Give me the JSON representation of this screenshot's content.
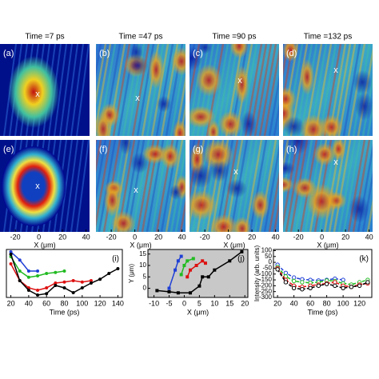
{
  "heatmaps": {
    "titles": [
      "Time =7 ps",
      "Time =47 ps",
      "Time =90 ps",
      "Time =132 ps"
    ],
    "panels": [
      {
        "label": "(a)",
        "marker": "x"
      },
      {
        "label": "(b)",
        "marker": "x"
      },
      {
        "label": "(c)",
        "marker": "x"
      },
      {
        "label": "(d)",
        "marker": "x"
      },
      {
        "label": "(e)",
        "marker": "x"
      },
      {
        "label": "(f)",
        "marker": "x"
      },
      {
        "label": "(g)",
        "marker": "x"
      },
      {
        "label": "(h)",
        "marker": "x"
      }
    ],
    "xlim": [
      -33,
      43
    ],
    "xticks": [
      -20,
      0,
      20,
      40
    ],
    "x_label": "X (μm)"
  },
  "chart_data": [
    {
      "type": "line",
      "panel_label": "(i)",
      "x_label": "Time (ps)",
      "xlim": [
        15,
        145
      ],
      "xticks": [
        20,
        40,
        60,
        80,
        100,
        120,
        140
      ],
      "ylim": [
        0,
        1
      ],
      "marker": "circle",
      "line_style": "solid",
      "background": "#ffffff",
      "series": [
        {
          "color": "#1f3fd6",
          "x": [
            20,
            30,
            40,
            50
          ],
          "values": [
            0.95,
            0.78,
            0.55,
            0.55
          ]
        },
        {
          "color": "#22bb22",
          "x": [
            20,
            30,
            40,
            50,
            60,
            70,
            80
          ],
          "values": [
            0.85,
            0.55,
            0.42,
            0.45,
            0.5,
            0.52,
            0.55
          ]
        },
        {
          "color": "#dd1111",
          "x": [
            20,
            30,
            40,
            50,
            60,
            70,
            80,
            90,
            100,
            110
          ],
          "values": [
            0.7,
            0.35,
            0.2,
            0.15,
            0.2,
            0.3,
            0.32,
            0.35,
            0.32,
            0.35
          ]
        },
        {
          "color": "#000000",
          "x": [
            20,
            30,
            40,
            50,
            60,
            70,
            80,
            90,
            100,
            110,
            120,
            130,
            140
          ],
          "values": [
            0.9,
            0.35,
            0.15,
            0.05,
            0.08,
            0.25,
            0.2,
            0.1,
            0.2,
            0.3,
            0.38,
            0.5,
            0.6
          ]
        }
      ]
    },
    {
      "type": "line",
      "panel_label": "(j)",
      "x_label": "X (μm)",
      "y_label": "Y (μm)",
      "xlim": [
        -12,
        21
      ],
      "xticks": [
        -10,
        -5,
        0,
        5,
        10,
        15,
        20
      ],
      "ylim": [
        -4,
        17
      ],
      "yticks": [
        0,
        5,
        10,
        15
      ],
      "marker": "square",
      "line_style": "solid",
      "background": "#c8c8c8",
      "series": [
        {
          "color": "#1f3fd6",
          "x": [
            -5,
            -3,
            -2,
            -1
          ],
          "values": [
            0,
            8,
            12,
            14
          ]
        },
        {
          "color": "#22bb22",
          "x": [
            -1,
            0,
            1,
            3
          ],
          "values": [
            6,
            10,
            12,
            13
          ]
        },
        {
          "color": "#dd1111",
          "x": [
            1,
            2,
            4,
            6,
            7
          ],
          "values": [
            5,
            8,
            10,
            12,
            11
          ]
        },
        {
          "color": "#000000",
          "x": [
            -9,
            -5,
            -2,
            2,
            5,
            6,
            8,
            10,
            15,
            19
          ],
          "values": [
            -1,
            -1.5,
            -2,
            -2,
            1,
            5,
            5,
            8,
            12,
            16
          ]
        }
      ]
    },
    {
      "type": "line",
      "panel_label": "(k)",
      "x_label": "Time (ps)",
      "y_label": "Intensity (arb. units)",
      "xlim": [
        15,
        135
      ],
      "xticks": [
        20,
        40,
        60,
        80,
        100,
        120
      ],
      "ylim": [
        -300,
        110
      ],
      "yticks": [
        100,
        50,
        0,
        -50,
        -100,
        -150,
        -200,
        -250,
        -300
      ],
      "marker": "open-circle",
      "line_style": "dashed",
      "background": "#ffffff",
      "series": [
        {
          "color": "#1f3fd6",
          "x": [
            20,
            30,
            40,
            50,
            60,
            70,
            80,
            90,
            100
          ],
          "values": [
            -20,
            -90,
            -130,
            -145,
            -150,
            -155,
            -150,
            -140,
            -150
          ]
        },
        {
          "color": "#22bb22",
          "x": [
            20,
            30,
            40,
            50,
            60,
            70,
            80,
            90,
            100,
            110,
            120,
            130
          ],
          "values": [
            -40,
            -120,
            -160,
            -170,
            -175,
            -170,
            -155,
            -160,
            -180,
            -190,
            -170,
            -150
          ]
        },
        {
          "color": "#dd1111",
          "x": [
            20,
            30,
            40,
            50,
            60,
            70,
            80,
            90,
            100,
            110,
            120,
            130
          ],
          "values": [
            -50,
            -150,
            -200,
            -210,
            -200,
            -190,
            -180,
            -170,
            -200,
            -210,
            -190,
            -180
          ]
        },
        {
          "color": "#000000",
          "x": [
            20,
            30,
            40,
            50,
            60,
            70,
            80,
            90,
            100,
            110,
            120,
            130
          ],
          "values": [
            -60,
            -170,
            -220,
            -230,
            -220,
            -200,
            -185,
            -200,
            -220,
            -210,
            -200,
            -170
          ]
        }
      ]
    }
  ]
}
